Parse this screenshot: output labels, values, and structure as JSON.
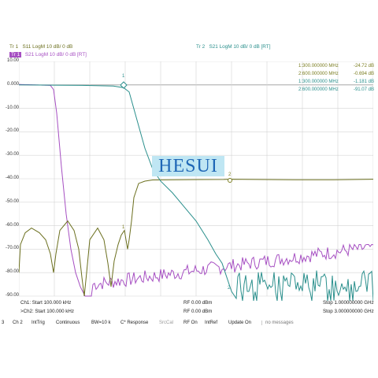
{
  "traces": {
    "tr1_label": "Tr 1",
    "tr1_desc": "S11 LogM 10 dB/ 0 dB",
    "tr1b_label": "Tr 1",
    "tr1b_desc": "S21 LogM 10 dB/ 0 dB [RT]",
    "tr2_label": "Tr 2",
    "tr2_desc": "S21 LogM 10 dB/ 0 dB [RT]",
    "colors": {
      "tr1": "#6b6f1e",
      "s21_purple": "#a64fc2",
      "tr2": "#2a8f8c"
    }
  },
  "y_axis": [
    "10.00",
    "0.000",
    "-10.00",
    "-20.00",
    "-30.00",
    "-40.00",
    "-50.00",
    "-60.00",
    "-70.00",
    "-80.00",
    "-90.00"
  ],
  "marker_table": [
    {
      "id": "1:",
      "freq": "300.000000 MHz",
      "value": "-24.72 dB",
      "color": "#7b7d20"
    },
    {
      "id": "2:",
      "freq": "600.000000 MHz",
      "value": "-0.694 dB",
      "color": "#7b7d20"
    },
    {
      "id": "1:",
      "freq": "300.000000 MHz",
      "value": "-1.181 dB",
      "color": "#2a8f8c"
    },
    {
      "id": "2:",
      "freq": "600.000000 MHz",
      "value": "-91.07 dB",
      "color": "#2a8f8c"
    }
  ],
  "marker_labels": {
    "m1": "1",
    "m2": "2",
    "m1_lower": "1",
    "m2_lower": "2"
  },
  "footer": {
    "ch1_start": "Ch1: Start 100.000 kHz",
    "ch1_rf": "RF 0.00 dBm",
    "ch1_stop": "Stop 1.000000000 GHz",
    "ch2_start": ">Ch2: Start 100.000 kHz",
    "ch2_rf": "RF 0.00 dBm",
    "ch2_stop": "Stop 3.000000000 GHz"
  },
  "softkeys": {
    "k0": "3",
    "k1": "Ch 2",
    "k2": "IntTrig",
    "k3": "Continuous",
    "k4": "BW=10 k",
    "k5": "C* Response",
    "k6": "SrcCal",
    "k7": "RF On",
    "k8": "IntRef",
    "k9": "Update On",
    "k10": "no messages"
  },
  "watermark": "HESUI"
}
